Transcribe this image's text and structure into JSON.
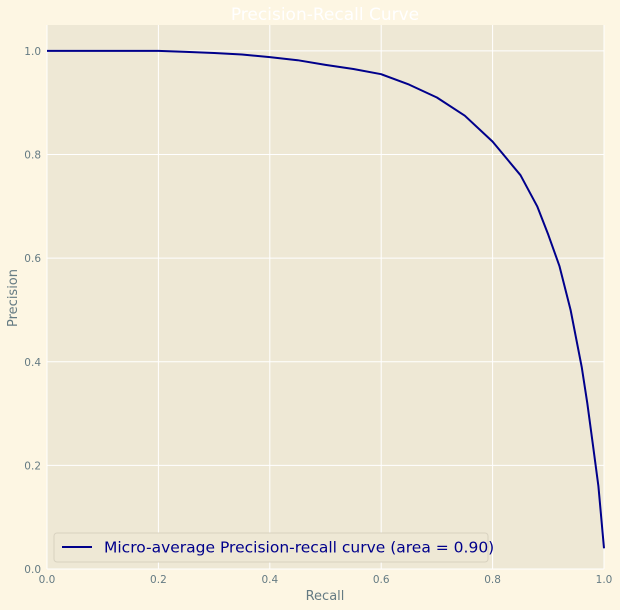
{
  "chart_data": {
    "type": "line",
    "title": "Precision-Recall Curve",
    "xlabel": "Recall",
    "ylabel": "Precision",
    "xlim": [
      0,
      1
    ],
    "ylim": [
      0,
      1.05
    ],
    "xticks": [
      "0.0",
      "0.2",
      "0.4",
      "0.6",
      "0.8",
      "1.0"
    ],
    "yticks": [
      "0.0",
      "0.2",
      "0.4",
      "0.6",
      "0.8",
      "1.0"
    ],
    "grid": true,
    "legend_position": "lower-left",
    "colors": {
      "page_bg": "#fdf6e3",
      "plot_bg": "#eee8d5",
      "grid": "#ffffff",
      "tick_text": "#657b83",
      "title_text": "#ffffff",
      "line": "#00008b",
      "legend_text": "#00008b"
    },
    "series": [
      {
        "name": "Micro-average Precision-recall curve (area = 0.90)",
        "x": [
          0,
          0.05,
          0.1,
          0.15,
          0.2,
          0.25,
          0.3,
          0.35,
          0.4,
          0.45,
          0.5,
          0.55,
          0.6,
          0.65,
          0.7,
          0.75,
          0.8,
          0.85,
          0.88,
          0.9,
          0.92,
          0.94,
          0.96,
          0.97,
          0.98,
          0.99,
          0.995,
          1.0
        ],
        "y": [
          1.0,
          1.0,
          1.0,
          1.0,
          1.0,
          0.998,
          0.996,
          0.993,
          0.988,
          0.982,
          0.973,
          0.965,
          0.955,
          0.935,
          0.91,
          0.875,
          0.825,
          0.76,
          0.7,
          0.645,
          0.585,
          0.5,
          0.39,
          0.32,
          0.24,
          0.16,
          0.1,
          0.04
        ]
      }
    ]
  }
}
